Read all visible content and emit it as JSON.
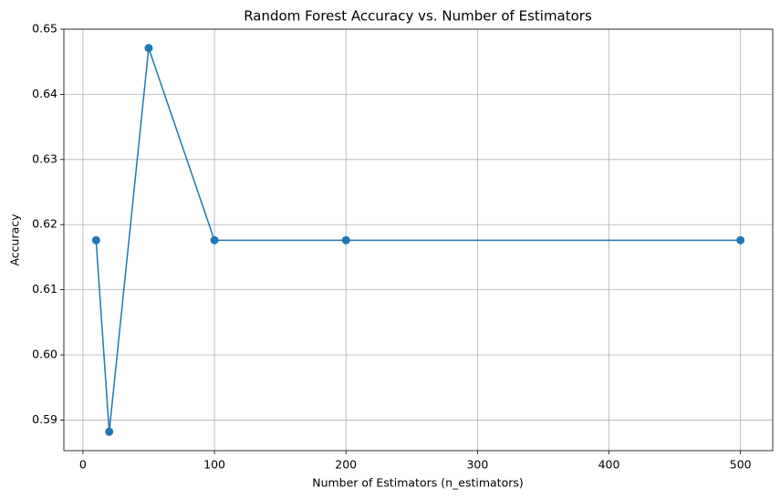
{
  "chart_data": {
    "type": "line",
    "title": "Random Forest Accuracy vs. Number of Estimators",
    "x_label": "Number of Estimators (n_estimators)",
    "y_label": "Accuracy",
    "x": [
      10,
      20,
      50,
      100,
      200,
      500
    ],
    "values": [
      0.6176,
      0.5882,
      0.6471,
      0.6176,
      0.6176,
      0.6176
    ],
    "color": "#1f77b4",
    "marker": "circle",
    "xlim": [
      -14.5,
      524.5
    ],
    "ylim": [
      0.5853,
      0.65
    ],
    "xticks": [
      0,
      100,
      200,
      300,
      400,
      500
    ],
    "yticks": [
      0.59,
      {
        "value": 0.6,
        "label": "0.60"
      },
      0.61,
      0.62,
      0.63,
      0.64,
      0.65
    ],
    "grid": true
  }
}
